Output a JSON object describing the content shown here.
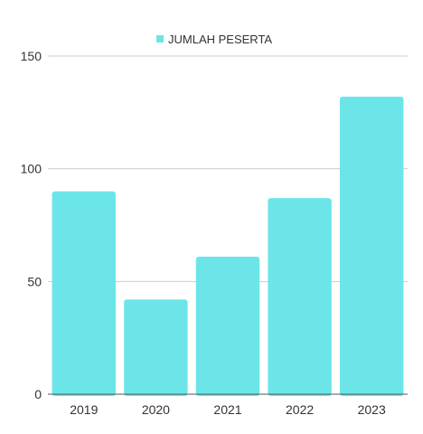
{
  "chart_data": {
    "type": "bar",
    "title": "",
    "xlabel": "",
    "ylabel": "",
    "categories": [
      "2019",
      "2020",
      "2021",
      "2022",
      "2023"
    ],
    "series": [
      {
        "name": "JUMLAH PESERTA",
        "values": [
          90,
          42,
          61,
          87,
          132
        ],
        "color": "#6ce5e8"
      }
    ],
    "ylim": [
      0,
      150
    ],
    "yticks": [
      0,
      50,
      100,
      150
    ],
    "grid": true,
    "legend": "top-center"
  }
}
